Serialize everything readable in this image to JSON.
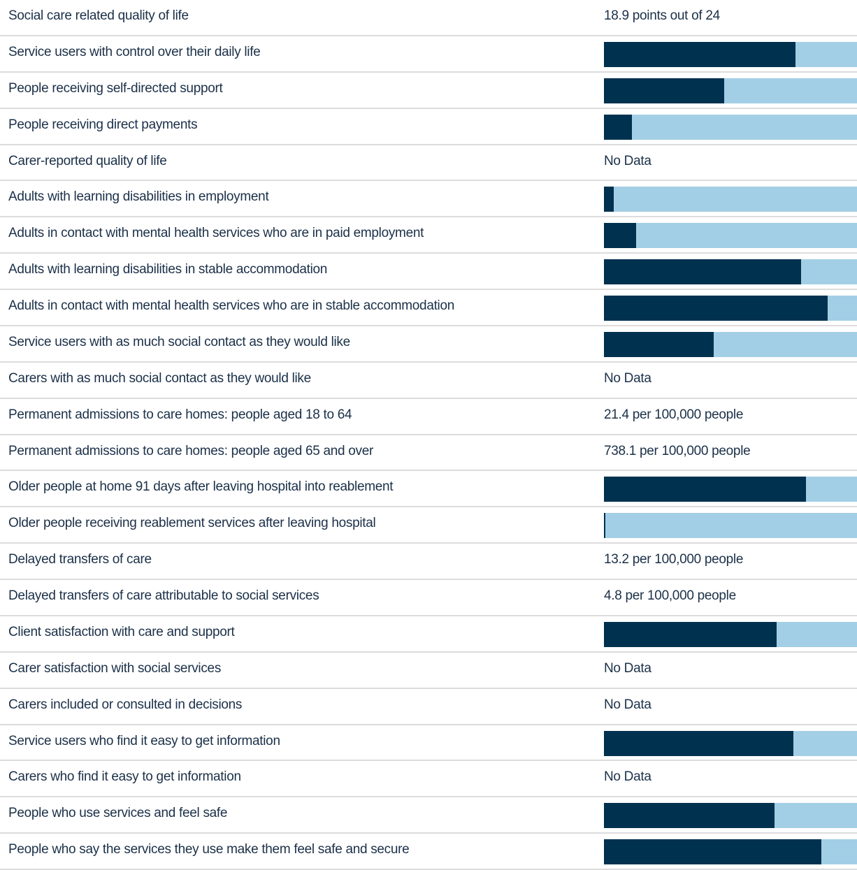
{
  "chart_data": {
    "type": "bar",
    "xlim": [
      0,
      100
    ],
    "rows": [
      {
        "label": "Social care related quality of life",
        "text": "18.9 points out of 24"
      },
      {
        "label": "Service users with control over their daily life",
        "value": 75.7
      },
      {
        "label": "People receiving self-directed support",
        "value": 47.5
      },
      {
        "label": "People receiving direct payments",
        "value": 11
      },
      {
        "label": "Carer-reported quality of life",
        "text": "No Data"
      },
      {
        "label": "Adults with learning disabilities in employment",
        "value": 4
      },
      {
        "label": "Adults in contact with mental health services who are in paid employment",
        "value": 12.7
      },
      {
        "label": "Adults with learning disabilities in stable accommodation",
        "value": 78
      },
      {
        "label": "Adults in contact with mental health services who are in stable accommodation",
        "value": 88.4
      },
      {
        "label": "Service users with as much social contact as they would like",
        "value": 43.4
      },
      {
        "label": "Carers with as much social contact as they would like",
        "text": "No Data"
      },
      {
        "label": "Permanent admissions to care homes: people aged 18 to 64",
        "text": "21.4 per 100,000 people"
      },
      {
        "label": "Permanent admissions to care homes: people aged 65 and over",
        "text": "738.1 per 100,000 people"
      },
      {
        "label": "Older people at home 91 days after leaving hospital into reablement",
        "value": 79.8
      },
      {
        "label": "Older people receiving reablement services after leaving hospital",
        "value": 0.6
      },
      {
        "label": "Delayed transfers of care",
        "text": "13.2 per 100,000 people"
      },
      {
        "label": "Delayed transfers of care attributable to social services",
        "text": "4.8 per 100,000 people"
      },
      {
        "label": "Client satisfaction with care and support",
        "value": 68.2
      },
      {
        "label": "Carer satisfaction with social services",
        "text": "No Data"
      },
      {
        "label": "Carers included or consulted in decisions",
        "text": "No Data"
      },
      {
        "label": "Service users who find it easy to get information",
        "value": 74.9
      },
      {
        "label": "Carers who find it easy to get information",
        "text": "No Data"
      },
      {
        "label": "People who use services and feel safe",
        "value": 67.4
      },
      {
        "label": "People who say the services they use make them feel safe and secure",
        "value": 85.9
      }
    ]
  }
}
